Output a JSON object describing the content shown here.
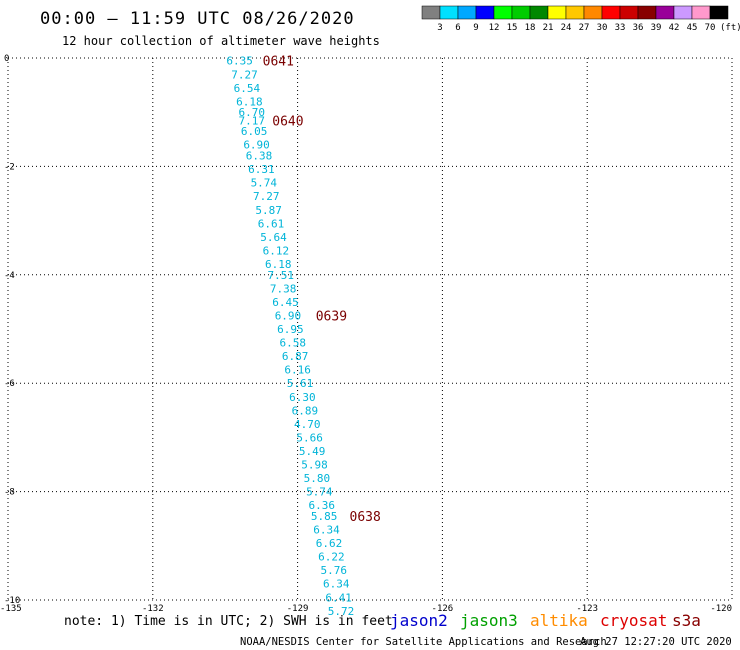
{
  "header": {
    "title": "00:00 – 11:59 UTC 08/26/2020",
    "subtitle": "12 hour collection of altimeter wave heights"
  },
  "colorbar": {
    "colors": [
      "#808080",
      "#00e0ff",
      "#00a8ff",
      "#0000ff",
      "#00ff00",
      "#00cc00",
      "#008800",
      "#ffff00",
      "#ffc800",
      "#ff8800",
      "#ff0000",
      "#cc0000",
      "#880000",
      "#990099",
      "#cc99ff",
      "#ff99cc",
      "#000000"
    ],
    "labels": [
      "3",
      "6",
      "9",
      "12",
      "15",
      "18",
      "21",
      "24",
      "27",
      "30",
      "33",
      "36",
      "39",
      "42",
      "45",
      "70"
    ],
    "unit": "(ft)"
  },
  "chart_data": {
    "type": "scatter",
    "x_ticks": [
      -135,
      -132,
      -129,
      -126,
      -123,
      -120
    ],
    "y_ticks": [
      0,
      -2,
      -4,
      -6,
      -8,
      -10
    ],
    "xlim": [
      -135,
      -120
    ],
    "ylim": [
      -10,
      0
    ],
    "grid": true,
    "series": [
      {
        "name": "jason2",
        "color": "#00b4d8",
        "points": [
          {
            "lon": -130.2,
            "lat": -0.05,
            "swh": "6.35"
          },
          {
            "lon": -130.1,
            "lat": -0.3,
            "swh": "7.27"
          },
          {
            "lon": -130.05,
            "lat": -0.55,
            "swh": "6.54"
          },
          {
            "lon": -130.0,
            "lat": -0.8,
            "swh": "6.18"
          },
          {
            "lon": -129.95,
            "lat": -1.0,
            "swh": "6.70"
          },
          {
            "lon": -129.95,
            "lat": -1.15,
            "swh": "7.17"
          },
          {
            "lon": -129.9,
            "lat": -1.35,
            "swh": "6.05"
          },
          {
            "lon": -129.85,
            "lat": -1.6,
            "swh": "6.90"
          },
          {
            "lon": -129.8,
            "lat": -1.8,
            "swh": "6.38"
          },
          {
            "lon": -129.75,
            "lat": -2.05,
            "swh": "6.31"
          },
          {
            "lon": -129.7,
            "lat": -2.3,
            "swh": "5.74"
          },
          {
            "lon": -129.65,
            "lat": -2.55,
            "swh": "7.27"
          },
          {
            "lon": -129.6,
            "lat": -2.8,
            "swh": "5.87"
          },
          {
            "lon": -129.55,
            "lat": -3.05,
            "swh": "6.61"
          },
          {
            "lon": -129.5,
            "lat": -3.3,
            "swh": "5.64"
          },
          {
            "lon": -129.45,
            "lat": -3.55,
            "swh": "6.12"
          },
          {
            "lon": -129.4,
            "lat": -3.8,
            "swh": "6.18"
          },
          {
            "lon": -129.35,
            "lat": -4.0,
            "swh": "7.51"
          },
          {
            "lon": -129.3,
            "lat": -4.25,
            "swh": "7.38"
          },
          {
            "lon": -129.25,
            "lat": -4.5,
            "swh": "6.45"
          },
          {
            "lon": -129.2,
            "lat": -4.75,
            "swh": "6.90"
          },
          {
            "lon": -129.15,
            "lat": -5.0,
            "swh": "6.95"
          },
          {
            "lon": -129.1,
            "lat": -5.25,
            "swh": "6.58"
          },
          {
            "lon": -129.05,
            "lat": -5.5,
            "swh": "6.87"
          },
          {
            "lon": -129.0,
            "lat": -5.75,
            "swh": "6.16"
          },
          {
            "lon": -128.95,
            "lat": -6.0,
            "swh": "5.61"
          },
          {
            "lon": -128.9,
            "lat": -6.25,
            "swh": "6.30"
          },
          {
            "lon": -128.85,
            "lat": -6.5,
            "swh": "6.89"
          },
          {
            "lon": -128.8,
            "lat": -6.75,
            "swh": "4.70"
          },
          {
            "lon": -128.75,
            "lat": -7.0,
            "swh": "5.66"
          },
          {
            "lon": -128.7,
            "lat": -7.25,
            "swh": "5.49"
          },
          {
            "lon": -128.65,
            "lat": -7.5,
            "swh": "5.98"
          },
          {
            "lon": -128.6,
            "lat": -7.75,
            "swh": "5.80"
          },
          {
            "lon": -128.55,
            "lat": -8.0,
            "swh": "5.74"
          },
          {
            "lon": -128.5,
            "lat": -8.25,
            "swh": "6.36"
          },
          {
            "lon": -128.45,
            "lat": -8.45,
            "swh": "5.85"
          },
          {
            "lon": -128.4,
            "lat": -8.7,
            "swh": "6.34"
          },
          {
            "lon": -128.35,
            "lat": -8.95,
            "swh": "6.62"
          },
          {
            "lon": -128.3,
            "lat": -9.2,
            "swh": "6.22"
          },
          {
            "lon": -128.25,
            "lat": -9.45,
            "swh": "5.76"
          },
          {
            "lon": -128.2,
            "lat": -9.7,
            "swh": "6.34"
          },
          {
            "lon": -128.15,
            "lat": -9.95,
            "swh": "6.41"
          },
          {
            "lon": -128.1,
            "lat": -10.2,
            "swh": "5.72"
          }
        ]
      }
    ],
    "pass_labels": [
      {
        "text": "0641",
        "lon": -129.4,
        "lat": -0.05
      },
      {
        "text": "0640",
        "lon": -129.2,
        "lat": -1.15
      },
      {
        "text": "0639",
        "lon": -128.3,
        "lat": -4.75
      },
      {
        "text": "0638",
        "lon": -127.6,
        "lat": -8.45
      }
    ]
  },
  "footer": {
    "note": "note: 1) Time is in UTC; 2) SWH is in feet",
    "satellites": [
      {
        "name": "jason2",
        "color": "#0000cc"
      },
      {
        "name": "jason3",
        "color": "#00a000"
      },
      {
        "name": "altika",
        "color": "#ff8c00"
      },
      {
        "name": "cryosat",
        "color": "#dd0000"
      },
      {
        "name": "s3a",
        "color": "#880000"
      }
    ],
    "credit": "NOAA/NESDIS Center for Satellite Applications and Research",
    "timestamp": "Aug 27 12:27:20 UTC 2020"
  }
}
